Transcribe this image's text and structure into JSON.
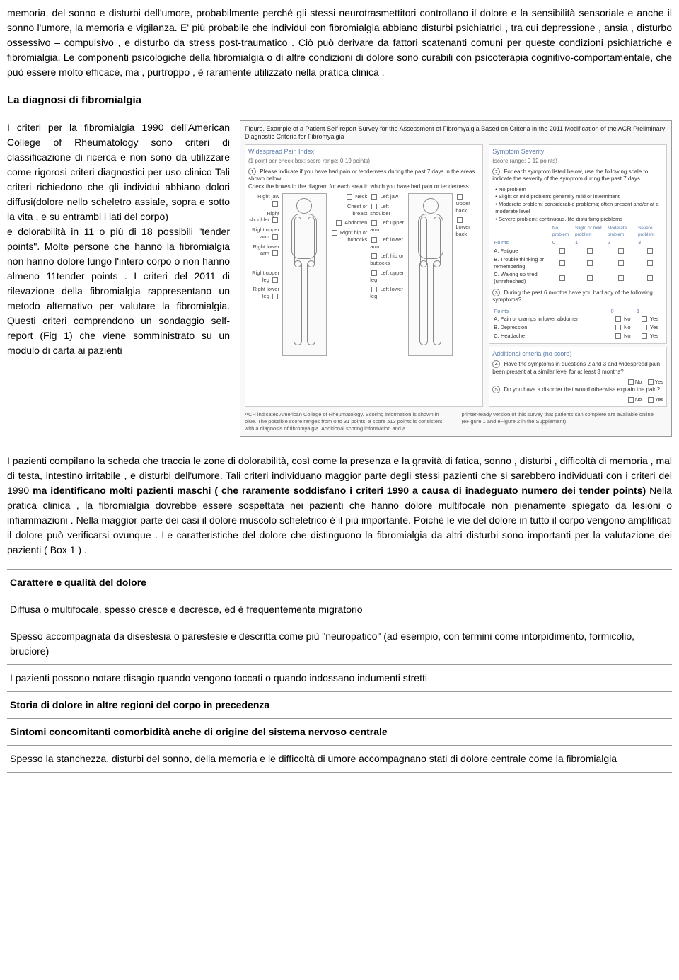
{
  "intro": {
    "p1": "memoria, del sonno e disturbi dell'umore, probabilmente perché gli stessi  neurotrasmettitori controllano il dolore e la sensibilità sensoriale  e anche il sonno l'umore, la memoria e vigilanza. E' più probabile che  individui con fibromialgia abbiano disturbi psichiatrici , tra cui depressione , ansia , disturbo ossessivo – compulsivo , e disturbo da stress post-traumatico . Ciò può derivare da fattori scatenanti comuni per queste condizioni psichiatriche e fibromialgia. Le componenti psicologiche della fibromialgia o di altre condizioni di dolore sono curabili con psicoterapia cognitivo-comportamentale, che può essere molto efficace, ma , purtroppo , è raramente utilizzato nella pratica clinica ."
  },
  "diag": {
    "heading": "La diagnosi di fibromialgia",
    "left": "I criteri per la fibromialgia 1990 dell'American College of Rheumatology sono criteri di classificazione di ricerca e non sono da utilizzare come rigorosi criteri diagnostici per uso clinico Tali criteri richiedono che gli individui abbiano dolori diffusi(dolore nello scheletro assiale, sopra e sotto la vita , e su entrambi i lati del corpo)\ne dolorabilità in 11 o più di 18 possibili \"tender points\". Molte persone che hanno la fibromialgia non hanno dolore lungo l'intero corpo o non hanno  almeno 11tender points . I criteri del  2011 di rilevazione della fibromialgia rappresentano un metodo alternativo per valutare la fibromialgia. Questi criteri comprendono un sondaggio self-report (Fig 1) che viene somministrato su un modulo di carta ai pazienti"
  },
  "figure": {
    "caption": "Figure. Example of a Patient Self-report Survey for the Assessment of Fibromyalgia Based on Criteria in the 2011 Modification of the ACR Preliminary Diagnostic Criteria for Fibromyalgia",
    "wpi": {
      "title": "Widespread Pain Index",
      "sub": "(1 point per check box; score range: 0-19 points)",
      "instr1": "Please indicate if you have had pain or tenderness during the past 7 days in the areas shown below.",
      "instr2": "Check the boxes in the diagram for each area in which you have had pain or tenderness.",
      "labels_left": [
        "Right jaw",
        "Right shoulder",
        "Right upper arm",
        "Right lower arm",
        "",
        "Right upper leg",
        "Right lower leg"
      ],
      "labels_mid": [
        "Neck",
        "Chest or breast",
        "Abdomen",
        "Right hip or buttocks"
      ],
      "labels_mid2": [
        "Left jaw",
        "Left shoulder",
        "Left upper arm",
        "Left lower arm",
        "Left hip or buttocks",
        "Left upper leg",
        "Left lower leg"
      ],
      "labels_right": [
        "Upper back",
        "Lower back"
      ]
    },
    "ss": {
      "title": "Symptom Severity",
      "sub": "(score range: 0-12 points)",
      "instr": "For each symptom listed below, use the following scale to indicate the severity of the symptom during the past 7 days.",
      "scale": [
        "• No problem",
        "• Slight or mild problem: generally mild or intermittent",
        "• Moderate problem: considerable problems; often present and/or at a moderate level",
        "• Severe problem: continuous, life-disturbing problems"
      ],
      "cols": [
        "No problem",
        "Slight or mild problem",
        "Moderate problem",
        "Severe problem"
      ],
      "colnums": [
        "0",
        "1",
        "2",
        "3"
      ],
      "points": "Points",
      "rows": [
        "A. Fatigue",
        "B. Trouble thinking or remembering",
        "C. Waking up tired (unrefreshed)"
      ],
      "q3": "During the past 6 months have you had any of the following symptoms?",
      "q3points": "Points",
      "q3cols": [
        "0",
        "1"
      ],
      "q3rows": [
        {
          "label": "A. Pain or cramps in lower abdomen",
          "no": "No",
          "yes": "Yes"
        },
        {
          "label": "B. Depression",
          "no": "No",
          "yes": "Yes"
        },
        {
          "label": "C. Headache",
          "no": "No",
          "yes": "Yes"
        }
      ]
    },
    "add": {
      "title": "Additional criteria (no score)",
      "q4": "Have the symptoms in questions 2 and 3 and widespread pain been present at a similar level for at least 3 months?",
      "q5": "Do you have a disorder that would otherwise explain the pain?",
      "no": "No",
      "yes": "Yes"
    },
    "foot_left": "ACR indicates American College of Rheumatology. Scoring information is shown in blue. The possible score ranges from 0 to 31 points; a score ≥13 points is consistent with a diagnosis of fibromyalgia. Additional scoring information and a",
    "foot_right": "printer-ready version of this survey that patients can complete are available online (eFigure 1 and eFigure 2 in the Supplement)."
  },
  "after": {
    "p_pre": "I pazienti compilano la scheda che  traccia le zone di  dolorabilità, così come la presenza e la gravità di fatica, sonno , disturbi , difficoltà di memoria , mal di testa, intestino irritabile , e disturbi dell'umore. Tali criteri individuano maggior parte degli stessi pazienti  che si sarebbero individuati con  i criteri del 1990 ",
    "p_bold": "ma identificano molti pazienti maschi ( che raramente soddisfano i criteri 1990 a causa di inadeguato numero dei tender points)",
    "p_post": " Nella pratica clinica , la fibromialgia dovrebbe essere sospettata nei pazienti che hanno  dolore multifocale non pienamente spiegato da lesioni o infiammazioni . Nella maggior parte dei casi il dolore muscolo scheletrico è il più importante. Poiché le vie del dolore in tutto il corpo vengono amplificati il dolore può verificarsi ovunque . Le caratteristiche del dolore che distinguono la  fibromialgia da altri disturbi sono importanti per la valutazione dei pazienti ( Box 1 ) ."
  },
  "box": {
    "rows": [
      {
        "hdr": true,
        "text": "Carattere e qualità del dolore"
      },
      {
        "hdr": false,
        "text": "Diffusa o multifocale, spesso cresce e decresce, ed è frequentemente migratorio"
      },
      {
        "hdr": false,
        "text": "Spesso accompagnata da disestesia o parestesie e descritta come più \"neuropatico\" (ad esempio, con termini come intorpidimento, formicolio, bruciore)"
      },
      {
        "hdr": false,
        "text": "I pazienti possono notare disagio quando vengono toccati o quando indossano indumenti stretti"
      },
      {
        "hdr": true,
        "text": "Storia di dolore in altre regioni del corpo in precedenza"
      },
      {
        "hdr": true,
        "text": "Sintomi concomitanti comorbidità anche di origine del sistema nervoso centrale"
      },
      {
        "hdr": false,
        "text": "Spesso la stanchezza, disturbi del sonno, della memoria e le difficoltà di umore accompagnano stati di dolore centrale come la fibromialgia"
      }
    ]
  }
}
